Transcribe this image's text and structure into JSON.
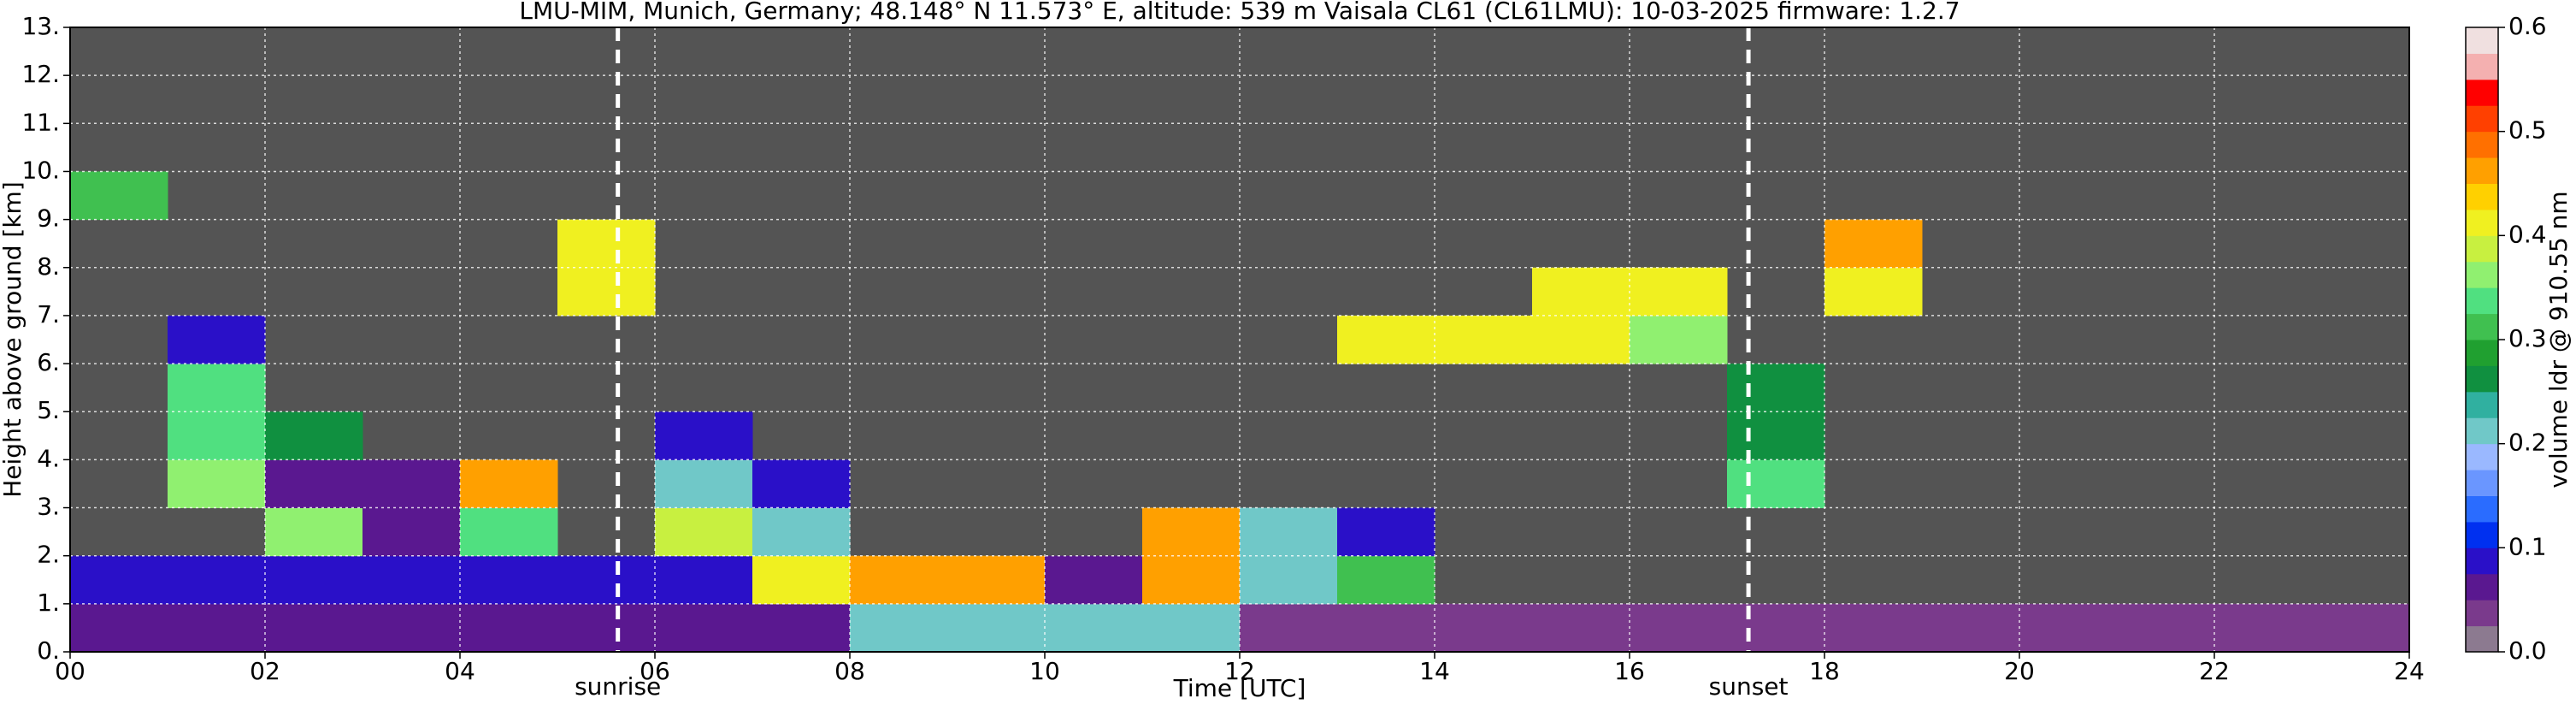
{
  "chart_data": {
    "type": "heatmap",
    "title": "LMU-MIM, Munich, Germany; 48.148° N 11.573° E, altitude: 539 m    Vaisala CL61 (CL61LMU): 10-03-2025    firmware: 1.2.7",
    "xlabel": "Time [UTC]",
    "ylabel": "Height above ground [km]",
    "colorbar_label": "volume ldr @ 910.55 nm",
    "xlim": [
      0,
      24
    ],
    "ylim": [
      0,
      13
    ],
    "xticks": [
      {
        "value": 0,
        "label": "00"
      },
      {
        "value": 2,
        "label": "02"
      },
      {
        "value": 4,
        "label": "04"
      },
      {
        "value": 6,
        "label": "06"
      },
      {
        "value": 8,
        "label": "08"
      },
      {
        "value": 10,
        "label": "10"
      },
      {
        "value": 12,
        "label": "12"
      },
      {
        "value": 14,
        "label": "14"
      },
      {
        "value": 16,
        "label": "16"
      },
      {
        "value": 18,
        "label": "18"
      },
      {
        "value": 20,
        "label": "20"
      },
      {
        "value": 22,
        "label": "22"
      },
      {
        "value": 24,
        "label": "24"
      }
    ],
    "yticks": [
      {
        "value": 0,
        "label": "0."
      },
      {
        "value": 1,
        "label": "1."
      },
      {
        "value": 2,
        "label": "2."
      },
      {
        "value": 3,
        "label": "3."
      },
      {
        "value": 4,
        "label": "4."
      },
      {
        "value": 5,
        "label": "5."
      },
      {
        "value": 6,
        "label": "6."
      },
      {
        "value": 7,
        "label": "7."
      },
      {
        "value": 8,
        "label": "8."
      },
      {
        "value": 9,
        "label": "9."
      },
      {
        "value": 10,
        "label": "10."
      },
      {
        "value": 11,
        "label": "11."
      },
      {
        "value": 12,
        "label": "12."
      },
      {
        "value": 13,
        "label": "13."
      }
    ],
    "clim": [
      0,
      0.6
    ],
    "cticks": [
      {
        "value": 0,
        "label": "0.0"
      },
      0.1,
      0.2,
      0.3,
      0.4,
      0.5,
      0.6
    ],
    "colorscale": [
      "#8c7a90",
      "#7a3a8c",
      "#5a1890",
      "#2a10c8",
      "#0030f0",
      "#2a6cff",
      "#6a96ff",
      "#9ab8ff",
      "#70c8c8",
      "#30b0a0",
      "#109040",
      "#20a030",
      "#40c050",
      "#50e080",
      "#90f070",
      "#c8f040",
      "#f0f020",
      "#ffd000",
      "#ffa000",
      "#ff7000",
      "#ff4000",
      "#ff0000",
      "#f4b0b0",
      "#f0e0e0"
    ],
    "grid": true,
    "xbins": [
      0,
      1,
      2,
      3,
      4,
      5,
      6,
      7,
      8,
      9,
      10,
      11,
      12,
      13,
      14,
      15,
      16,
      17,
      18,
      19,
      20,
      21,
      22,
      23,
      24
    ],
    "ybins": [
      0,
      1,
      2,
      3,
      4,
      5,
      6,
      7,
      8,
      9,
      10,
      11,
      12,
      13
    ],
    "z": [
      [
        0.07,
        0.07,
        0.07,
        0.07,
        0.07,
        0.07,
        0.07,
        0.07,
        0.2,
        0.2,
        0.2,
        0.2,
        0.03,
        0.03,
        0.03,
        0.03,
        0.03,
        0.03,
        0.03,
        0.03,
        0.03,
        0.03,
        0.03,
        0.03
      ],
      [
        0.08,
        0.08,
        0.08,
        0.08,
        0.08,
        0.08,
        0.08,
        0.4,
        0.45,
        0.45,
        0.07,
        0.45,
        0.2,
        0.3,
        null,
        null,
        null,
        null,
        null,
        null,
        null,
        null,
        null,
        null
      ],
      [
        null,
        null,
        0.35,
        0.05,
        0.33,
        null,
        0.38,
        0.22,
        null,
        null,
        null,
        0.45,
        0.2,
        0.08,
        null,
        null,
        null,
        null,
        null,
        null,
        null,
        null,
        null,
        null
      ],
      [
        null,
        0.35,
        0.05,
        0.05,
        0.45,
        null,
        0.2,
        0.08,
        null,
        null,
        null,
        null,
        null,
        null,
        null,
        null,
        null,
        0.33,
        null,
        null,
        null,
        null,
        null,
        null
      ],
      [
        null,
        0.33,
        0.25,
        null,
        null,
        null,
        0.08,
        null,
        null,
        null,
        null,
        null,
        null,
        null,
        null,
        null,
        null,
        0.25,
        null,
        null,
        null,
        null,
        null,
        null
      ],
      [
        null,
        0.33,
        null,
        null,
        null,
        null,
        null,
        null,
        null,
        null,
        null,
        null,
        null,
        null,
        null,
        null,
        null,
        0.25,
        null,
        null,
        null,
        null,
        null,
        null
      ],
      [
        null,
        0.08,
        null,
        null,
        null,
        null,
        null,
        null,
        null,
        null,
        null,
        null,
        null,
        0.4,
        0.4,
        0.4,
        0.35,
        null,
        null,
        null,
        null,
        null,
        null,
        null
      ],
      [
        null,
        null,
        null,
        null,
        null,
        0.4,
        null,
        null,
        null,
        null,
        null,
        null,
        null,
        null,
        null,
        0.42,
        0.4,
        null,
        0.4,
        null,
        null,
        null,
        null,
        null
      ],
      [
        null,
        null,
        null,
        null,
        null,
        0.4,
        null,
        null,
        null,
        null,
        null,
        null,
        null,
        null,
        null,
        null,
        null,
        null,
        0.45,
        null,
        null,
        null,
        null,
        null
      ],
      [
        0.32,
        null,
        null,
        null,
        null,
        null,
        null,
        null,
        null,
        null,
        null,
        null,
        null,
        null,
        null,
        null,
        null,
        null,
        null,
        null,
        null,
        null,
        null,
        null
      ],
      [
        null,
        null,
        null,
        null,
        null,
        null,
        null,
        null,
        null,
        null,
        null,
        null,
        null,
        null,
        null,
        null,
        null,
        null,
        null,
        null,
        null,
        null,
        null,
        null
      ],
      [
        null,
        null,
        null,
        null,
        null,
        null,
        null,
        null,
        null,
        null,
        null,
        null,
        null,
        null,
        null,
        null,
        null,
        null,
        null,
        null,
        null,
        null,
        null,
        null
      ],
      [
        null,
        null,
        null,
        null,
        null,
        null,
        null,
        null,
        null,
        null,
        null,
        null,
        null,
        null,
        null,
        null,
        null,
        null,
        null,
        null,
        null,
        null,
        null,
        null
      ]
    ],
    "annotations": [
      {
        "text": "sunrise",
        "x": 5.62
      },
      {
        "text": "sunset",
        "x": 17.22
      }
    ]
  }
}
